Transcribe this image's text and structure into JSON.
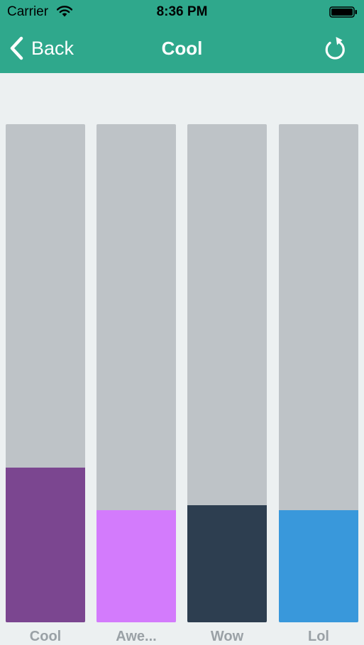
{
  "status_bar": {
    "carrier": "Carrier",
    "time": "8:36 PM",
    "icons": [
      "wifi-icon",
      "battery-icon"
    ]
  },
  "nav_bar": {
    "back_label": "Back",
    "title": "Cool",
    "back_icon": "chevron-left-icon",
    "refresh_icon": "refresh-icon"
  },
  "colors": {
    "nav_background": "#2fa88c",
    "page_background": "#ecf0f1",
    "track": "#bec3c7",
    "label": "#9aa1a6"
  },
  "chart_data": {
    "type": "bar",
    "categories": [
      "Cool",
      "Awe...",
      "Wow",
      "Lol"
    ],
    "values": [
      0.31,
      0.225,
      0.235,
      0.225
    ],
    "value_unit": "fraction of bar height",
    "ylim": [
      0,
      1
    ],
    "colors": [
      "#7b4690",
      "#d37bfc",
      "#2d3e50",
      "#3998db"
    ],
    "grid": false,
    "legend": "none"
  }
}
